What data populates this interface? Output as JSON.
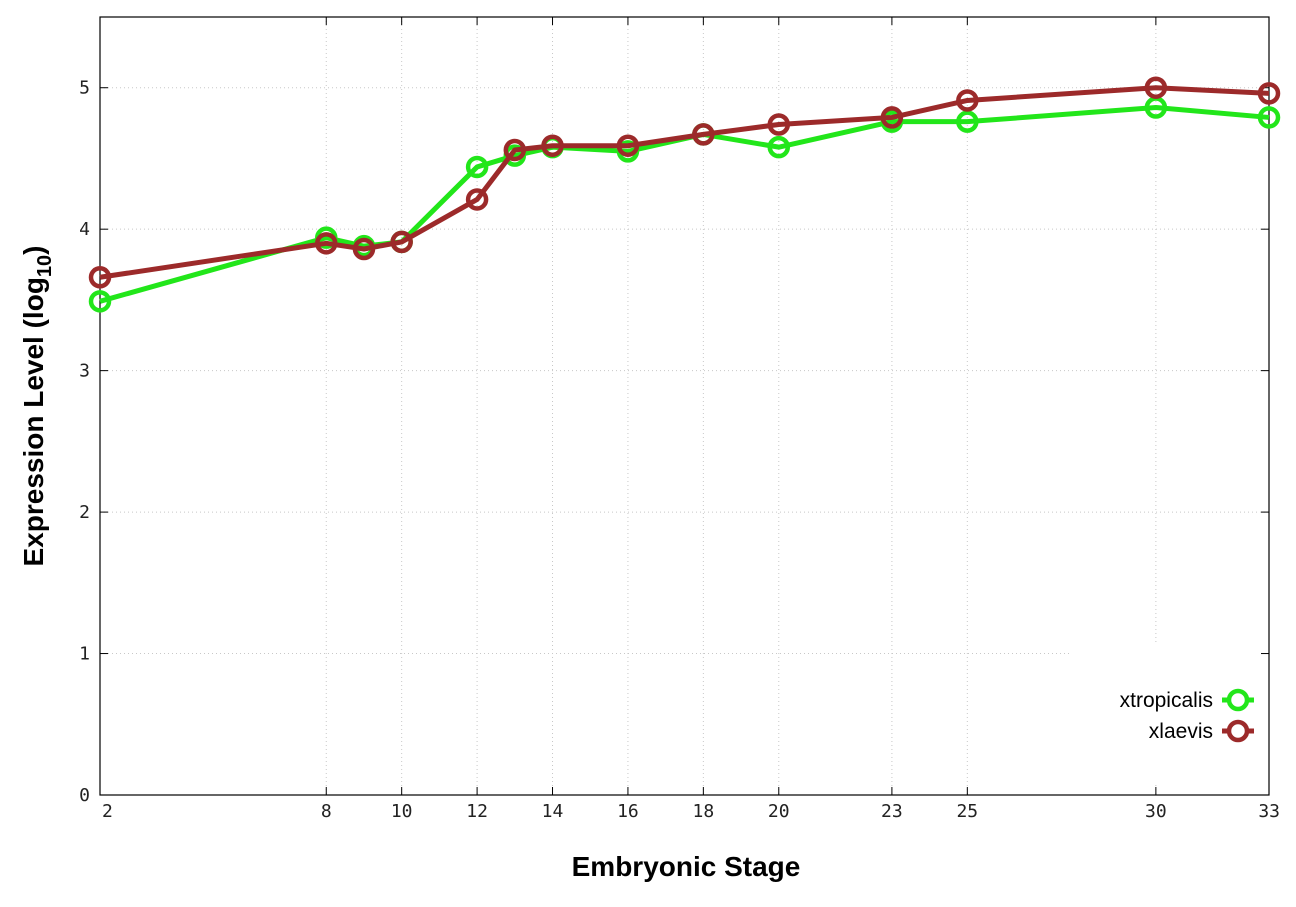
{
  "chart_data": {
    "type": "line",
    "xlabel": "Embryonic Stage",
    "ylabel_main": "Expression Level (log",
    "ylabel_sub": "10",
    "ylabel_close": ")",
    "xlim": [
      2,
      33
    ],
    "ylim": [
      0,
      5.5
    ],
    "xticks": [
      2,
      8,
      10,
      12,
      14,
      16,
      18,
      20,
      23,
      25,
      30,
      33
    ],
    "yticks": [
      0,
      1,
      2,
      3,
      4,
      5
    ],
    "grid": true,
    "legend_position": "bottom-right",
    "series": [
      {
        "name": "xtropicalis",
        "color": "#22e61a",
        "points": [
          [
            2,
            3.49
          ],
          [
            8,
            3.94
          ],
          [
            9,
            3.88
          ],
          [
            10,
            3.91
          ],
          [
            12,
            4.44
          ],
          [
            13,
            4.52
          ],
          [
            14,
            4.58
          ],
          [
            16,
            4.55
          ],
          [
            18,
            4.67
          ],
          [
            20,
            4.58
          ],
          [
            23,
            4.76
          ],
          [
            25,
            4.76
          ],
          [
            30,
            4.86
          ],
          [
            33,
            4.79
          ]
        ]
      },
      {
        "name": "xlaevis",
        "color": "#9c2a2a",
        "points": [
          [
            2,
            3.66
          ],
          [
            8,
            3.9
          ],
          [
            9,
            3.86
          ],
          [
            10,
            3.91
          ],
          [
            12,
            4.21
          ],
          [
            13,
            4.56
          ],
          [
            14,
            4.59
          ],
          [
            16,
            4.59
          ],
          [
            18,
            4.67
          ],
          [
            20,
            4.74
          ],
          [
            23,
            4.79
          ],
          [
            25,
            4.91
          ],
          [
            30,
            5.0
          ],
          [
            33,
            4.96
          ]
        ]
      }
    ]
  }
}
